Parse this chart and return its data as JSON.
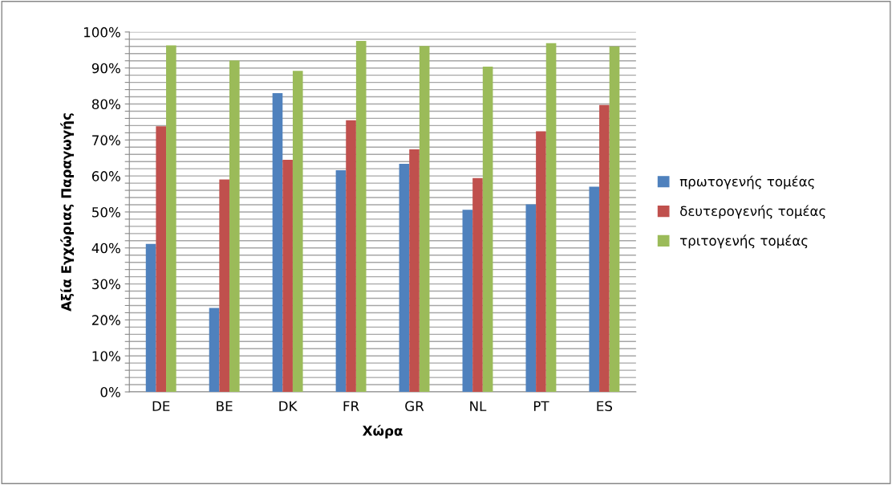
{
  "chart_data": {
    "type": "bar",
    "xlabel": "Χώρα",
    "ylabel": "Αξία Εγχώριας Παραγωγής",
    "categories": [
      "DE",
      "BE",
      "DK",
      "FR",
      "GR",
      "NL",
      "PT",
      "ES"
    ],
    "series": [
      {
        "name": "πρωτογενής τομέας",
        "color": "#4f81bd",
        "values": [
          41.1,
          23.3,
          83.0,
          61.6,
          63.4,
          50.6,
          52.1,
          57.0
        ]
      },
      {
        "name": "δευτερογενής τομέας",
        "color": "#c0504d",
        "values": [
          73.8,
          59.0,
          64.5,
          75.5,
          67.4,
          59.4,
          72.4,
          79.7
        ]
      },
      {
        "name": "τριτογενής τομέας",
        "color": "#9bbb59",
        "values": [
          96.3,
          92.1,
          89.2,
          97.5,
          96.1,
          90.4,
          96.9,
          96.0
        ]
      }
    ],
    "ylim": [
      0,
      100
    ],
    "yticks": [
      {
        "value": 0,
        "label": "0%"
      },
      {
        "value": 2,
        "label": null
      },
      {
        "value": 4,
        "label": null
      },
      {
        "value": 6,
        "label": null
      },
      {
        "value": 8,
        "label": null
      },
      {
        "value": 10,
        "label": "10%"
      },
      {
        "value": 12,
        "label": null
      },
      {
        "value": 14,
        "label": null
      },
      {
        "value": 16,
        "label": null
      },
      {
        "value": 18,
        "label": null
      },
      {
        "value": 20,
        "label": "20%"
      },
      {
        "value": 22,
        "label": null
      },
      {
        "value": 24,
        "label": null
      },
      {
        "value": 26,
        "label": null
      },
      {
        "value": 28,
        "label": null
      },
      {
        "value": 30,
        "label": "30%"
      },
      {
        "value": 32,
        "label": null
      },
      {
        "value": 34,
        "label": null
      },
      {
        "value": 36,
        "label": null
      },
      {
        "value": 38,
        "label": null
      },
      {
        "value": 40,
        "label": "40%"
      },
      {
        "value": 42,
        "label": null
      },
      {
        "value": 44,
        "label": null
      },
      {
        "value": 46,
        "label": null
      },
      {
        "value": 48,
        "label": null
      },
      {
        "value": 50,
        "label": "50%"
      },
      {
        "value": 52,
        "label": null
      },
      {
        "value": 54,
        "label": null
      },
      {
        "value": 56,
        "label": null
      },
      {
        "value": 58,
        "label": null
      },
      {
        "value": 60,
        "label": "60%"
      },
      {
        "value": 62,
        "label": null
      },
      {
        "value": 64,
        "label": null
      },
      {
        "value": 66,
        "label": null
      },
      {
        "value": 68,
        "label": null
      },
      {
        "value": 70,
        "label": "70%"
      },
      {
        "value": 72,
        "label": null
      },
      {
        "value": 74,
        "label": null
      },
      {
        "value": 76,
        "label": null
      },
      {
        "value": 78,
        "label": null
      },
      {
        "value": 80,
        "label": "80%"
      },
      {
        "value": 82,
        "label": null
      },
      {
        "value": 84,
        "label": null
      },
      {
        "value": 86,
        "label": null
      },
      {
        "value": 88,
        "label": null
      },
      {
        "value": 90,
        "label": "90%"
      },
      {
        "value": 92,
        "label": null
      },
      {
        "value": 94,
        "label": null
      },
      {
        "value": 96,
        "label": null
      },
      {
        "value": 98,
        "label": null
      },
      {
        "value": 100,
        "label": "100%"
      }
    ],
    "grid": "y",
    "legend": "right"
  }
}
